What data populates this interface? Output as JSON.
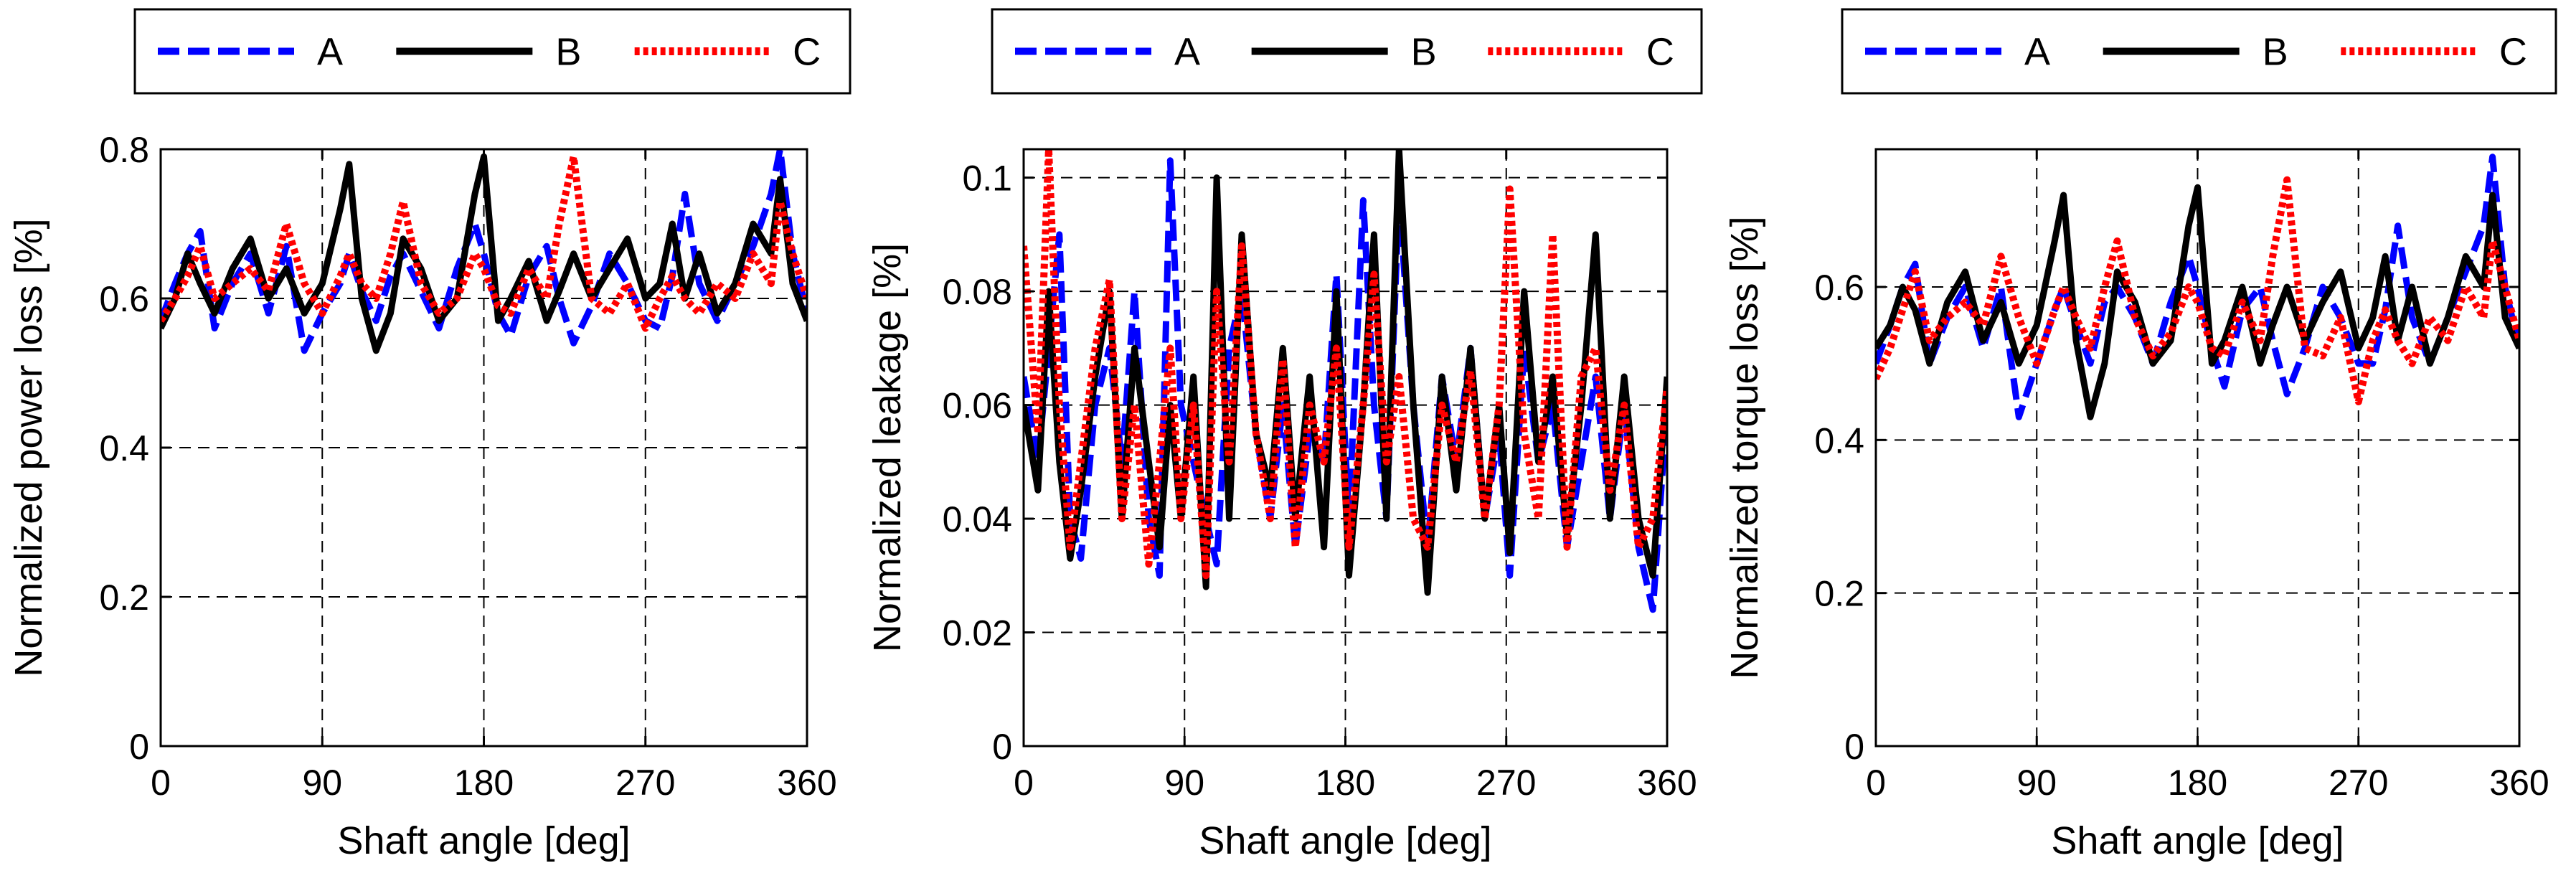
{
  "colors": {
    "A": "#0000ff",
    "B": "#000000",
    "C": "#ff0000",
    "grid": "#000000",
    "background": "#ffffff"
  },
  "chart_data": [
    {
      "type": "line",
      "title": "",
      "xlabel": "Shaft angle [deg]",
      "ylabel": "Normalized power loss [%]",
      "xlim": [
        0,
        360
      ],
      "ylim": [
        0,
        0.8
      ],
      "xticks": [
        0,
        90,
        180,
        270,
        360
      ],
      "xtick_labels": [
        "0",
        "90",
        "180",
        "270",
        "360"
      ],
      "yticks": [
        0,
        0.2,
        0.4,
        0.6,
        0.8
      ],
      "ytick_labels": [
        "0",
        "0.2",
        "0.4",
        "0.6",
        "0.8"
      ],
      "grid": true,
      "legend_position": "top-outside",
      "x": [
        0,
        8,
        15,
        22,
        30,
        40,
        50,
        60,
        70,
        80,
        90,
        100,
        105,
        112,
        120,
        128,
        135,
        145,
        155,
        165,
        175,
        180,
        188,
        195,
        205,
        215,
        222,
        230,
        240,
        250,
        260,
        270,
        278,
        285,
        292,
        300,
        310,
        320,
        330,
        340,
        345,
        352,
        360
      ],
      "series": [
        {
          "name": "A",
          "style": "dashed",
          "values": [
            0.57,
            0.62,
            0.66,
            0.69,
            0.56,
            0.62,
            0.66,
            0.58,
            0.67,
            0.53,
            0.58,
            0.62,
            0.66,
            0.61,
            0.57,
            0.63,
            0.66,
            0.61,
            0.56,
            0.64,
            0.7,
            0.66,
            0.58,
            0.55,
            0.63,
            0.67,
            0.6,
            0.54,
            0.59,
            0.66,
            0.62,
            0.57,
            0.56,
            0.63,
            0.74,
            0.62,
            0.57,
            0.62,
            0.67,
            0.74,
            0.8,
            0.66,
            0.58
          ]
        },
        {
          "name": "B",
          "style": "solid",
          "values": [
            0.56,
            0.6,
            0.66,
            0.62,
            0.58,
            0.64,
            0.68,
            0.6,
            0.64,
            0.58,
            0.62,
            0.72,
            0.78,
            0.6,
            0.53,
            0.58,
            0.68,
            0.64,
            0.57,
            0.6,
            0.74,
            0.79,
            0.57,
            0.6,
            0.65,
            0.57,
            0.61,
            0.66,
            0.6,
            0.64,
            0.68,
            0.6,
            0.62,
            0.7,
            0.6,
            0.66,
            0.58,
            0.62,
            0.7,
            0.66,
            0.76,
            0.62,
            0.57
          ]
        },
        {
          "name": "C",
          "style": "dotted",
          "values": [
            0.57,
            0.6,
            0.63,
            0.67,
            0.6,
            0.62,
            0.64,
            0.61,
            0.7,
            0.62,
            0.58,
            0.63,
            0.66,
            0.62,
            0.6,
            0.66,
            0.73,
            0.62,
            0.58,
            0.6,
            0.66,
            0.64,
            0.59,
            0.58,
            0.64,
            0.6,
            0.7,
            0.79,
            0.6,
            0.58,
            0.62,
            0.56,
            0.6,
            0.63,
            0.6,
            0.58,
            0.62,
            0.6,
            0.66,
            0.62,
            0.73,
            0.66,
            0.6
          ]
        }
      ]
    },
    {
      "type": "line",
      "title": "",
      "xlabel": "Shaft angle [deg]",
      "ylabel": "Normalized leakage [%]",
      "xlim": [
        0,
        360
      ],
      "ylim": [
        0,
        0.105
      ],
      "xticks": [
        0,
        90,
        180,
        270,
        360
      ],
      "xtick_labels": [
        "0",
        "90",
        "180",
        "270",
        "360"
      ],
      "yticks": [
        0,
        0.02,
        0.04,
        0.06,
        0.08,
        0.1
      ],
      "ytick_labels": [
        "0",
        "0.02",
        "0.04",
        "0.06",
        "0.08",
        "0.1"
      ],
      "grid": true,
      "legend_position": "top-outside",
      "x": [
        0,
        8,
        14,
        20,
        26,
        32,
        40,
        48,
        55,
        62,
        70,
        76,
        82,
        88,
        95,
        102,
        108,
        115,
        122,
        130,
        138,
        145,
        152,
        160,
        168,
        175,
        182,
        190,
        196,
        203,
        210,
        218,
        226,
        234,
        242,
        250,
        258,
        266,
        272,
        280,
        288,
        296,
        304,
        312,
        320,
        328,
        336,
        344,
        352,
        360
      ],
      "series": [
        {
          "name": "A",
          "style": "dashed",
          "values": [
            0.065,
            0.05,
            0.07,
            0.09,
            0.04,
            0.033,
            0.06,
            0.07,
            0.05,
            0.08,
            0.04,
            0.03,
            0.103,
            0.06,
            0.05,
            0.04,
            0.032,
            0.07,
            0.08,
            0.055,
            0.04,
            0.06,
            0.035,
            0.055,
            0.05,
            0.083,
            0.04,
            0.096,
            0.06,
            0.04,
            0.097,
            0.06,
            0.035,
            0.065,
            0.05,
            0.07,
            0.04,
            0.055,
            0.03,
            0.07,
            0.05,
            0.06,
            0.035,
            0.05,
            0.065,
            0.04,
            0.06,
            0.035,
            0.024,
            0.06
          ]
        },
        {
          "name": "B",
          "style": "solid",
          "values": [
            0.06,
            0.045,
            0.08,
            0.05,
            0.033,
            0.045,
            0.065,
            0.08,
            0.04,
            0.07,
            0.05,
            0.035,
            0.06,
            0.04,
            0.065,
            0.028,
            0.1,
            0.04,
            0.09,
            0.055,
            0.045,
            0.07,
            0.04,
            0.065,
            0.035,
            0.08,
            0.03,
            0.06,
            0.09,
            0.04,
            0.105,
            0.06,
            0.027,
            0.065,
            0.045,
            0.07,
            0.04,
            0.06,
            0.034,
            0.08,
            0.05,
            0.065,
            0.037,
            0.06,
            0.09,
            0.04,
            0.065,
            0.04,
            0.03,
            0.065
          ]
        },
        {
          "name": "C",
          "style": "dotted",
          "values": [
            0.088,
            0.055,
            0.105,
            0.06,
            0.035,
            0.05,
            0.07,
            0.082,
            0.04,
            0.06,
            0.032,
            0.05,
            0.07,
            0.04,
            0.06,
            0.03,
            0.08,
            0.05,
            0.088,
            0.055,
            0.04,
            0.068,
            0.035,
            0.06,
            0.05,
            0.07,
            0.035,
            0.06,
            0.083,
            0.05,
            0.065,
            0.04,
            0.035,
            0.06,
            0.05,
            0.066,
            0.04,
            0.06,
            0.098,
            0.055,
            0.04,
            0.09,
            0.035,
            0.065,
            0.07,
            0.045,
            0.06,
            0.035,
            0.04,
            0.063
          ]
        }
      ]
    },
    {
      "type": "line",
      "title": "",
      "xlabel": "Shaft angle [deg]",
      "ylabel": "Normalized torque loss [%]",
      "xlim": [
        0,
        360
      ],
      "ylim": [
        0,
        0.78
      ],
      "xticks": [
        0,
        90,
        180,
        270,
        360
      ],
      "xtick_labels": [
        "0",
        "90",
        "180",
        "270",
        "360"
      ],
      "yticks": [
        0,
        0.2,
        0.4,
        0.6
      ],
      "ytick_labels": [
        "0",
        "0.2",
        "0.4",
        "0.6"
      ],
      "grid": true,
      "legend_position": "top-outside",
      "x": [
        0,
        8,
        15,
        22,
        30,
        40,
        50,
        60,
        70,
        80,
        90,
        100,
        105,
        112,
        120,
        128,
        135,
        145,
        155,
        165,
        175,
        180,
        188,
        195,
        205,
        215,
        222,
        230,
        240,
        250,
        260,
        270,
        278,
        285,
        292,
        300,
        310,
        320,
        330,
        340,
        345,
        352,
        360
      ],
      "series": [
        {
          "name": "A",
          "style": "dashed",
          "values": [
            0.5,
            0.55,
            0.6,
            0.63,
            0.5,
            0.56,
            0.6,
            0.52,
            0.6,
            0.43,
            0.5,
            0.57,
            0.6,
            0.55,
            0.5,
            0.58,
            0.6,
            0.56,
            0.5,
            0.58,
            0.64,
            0.6,
            0.52,
            0.47,
            0.57,
            0.6,
            0.53,
            0.46,
            0.52,
            0.6,
            0.56,
            0.5,
            0.5,
            0.57,
            0.68,
            0.56,
            0.5,
            0.56,
            0.62,
            0.68,
            0.77,
            0.6,
            0.52
          ]
        },
        {
          "name": "B",
          "style": "solid",
          "values": [
            0.52,
            0.55,
            0.6,
            0.57,
            0.5,
            0.58,
            0.62,
            0.53,
            0.58,
            0.5,
            0.55,
            0.66,
            0.72,
            0.53,
            0.43,
            0.5,
            0.62,
            0.58,
            0.5,
            0.53,
            0.68,
            0.73,
            0.5,
            0.53,
            0.6,
            0.5,
            0.55,
            0.6,
            0.53,
            0.58,
            0.62,
            0.52,
            0.56,
            0.64,
            0.53,
            0.6,
            0.5,
            0.56,
            0.64,
            0.6,
            0.72,
            0.56,
            0.52
          ]
        },
        {
          "name": "C",
          "style": "dotted",
          "values": [
            0.48,
            0.52,
            0.57,
            0.62,
            0.53,
            0.56,
            0.58,
            0.55,
            0.64,
            0.56,
            0.5,
            0.57,
            0.6,
            0.56,
            0.52,
            0.6,
            0.66,
            0.56,
            0.51,
            0.54,
            0.6,
            0.58,
            0.52,
            0.51,
            0.58,
            0.53,
            0.64,
            0.74,
            0.52,
            0.51,
            0.56,
            0.45,
            0.53,
            0.57,
            0.53,
            0.5,
            0.56,
            0.53,
            0.6,
            0.56,
            0.66,
            0.6,
            0.53
          ]
        }
      ]
    }
  ]
}
